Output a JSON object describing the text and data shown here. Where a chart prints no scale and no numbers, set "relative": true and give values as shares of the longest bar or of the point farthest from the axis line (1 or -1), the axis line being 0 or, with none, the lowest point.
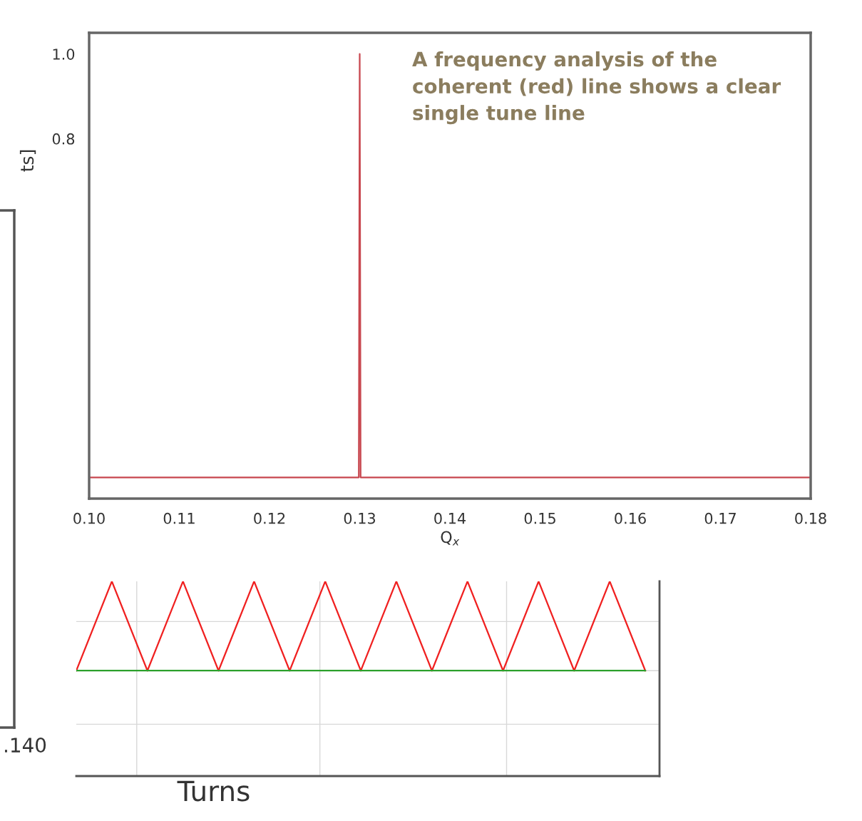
{
  "chart_data": [
    {
      "type": "line",
      "xlabel": "Q$_{x}$",
      "x": [
        0.1,
        0.1299,
        0.13,
        0.1301,
        0.18
      ],
      "series": [
        {
          "color": "#c8474f",
          "values": [
            0.0,
            0.0,
            1.0,
            0.0,
            0.0
          ]
        }
      ],
      "xlim": [
        0.1,
        0.18
      ],
      "xticks": [
        {
          "value": 0.1,
          "label": "0.10"
        },
        0.11,
        0.12,
        0.13,
        0.14,
        0.15,
        0.16,
        0.17,
        0.18
      ],
      "ylim": [
        -0.05,
        1.05
      ],
      "yticks": [
        0.8,
        {
          "value": 1.0,
          "label": "1.0"
        }
      ],
      "grid": false,
      "annotations": [
        "A frequency analysis of the coherent (red) line shows a clear single tune line"
      ]
    },
    {
      "type": "line",
      "relative": true,
      "xlabel": "Turns",
      "grid": true,
      "categories": [
        null,
        null,
        null,
        null,
        null,
        null,
        null,
        null,
        null,
        null,
        null,
        null,
        null,
        null,
        null,
        null,
        null
      ],
      "series": [
        {
          "color": "#f02020",
          "values": [
            0,
            1,
            0,
            1,
            0,
            1,
            0,
            1,
            0,
            1,
            0,
            1,
            0,
            1,
            0,
            1,
            0
          ]
        },
        {
          "color": "#2ca02c",
          "values": [
            0,
            0,
            0,
            0,
            0,
            0,
            0,
            0,
            0,
            0,
            0,
            0,
            0,
            0,
            0,
            0,
            0
          ]
        }
      ],
      "annotations": [
        ".140",
        "ts]"
      ]
    }
  ]
}
